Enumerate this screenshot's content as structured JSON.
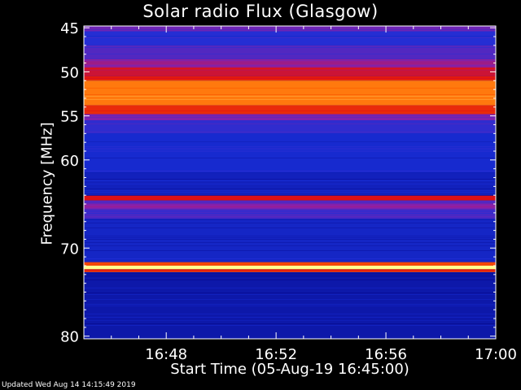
{
  "chart_data": {
    "type": "heatmap",
    "title": "Solar radio Flux (Glasgow)",
    "xlabel": "Start Time (05-Aug-19 16:45:00)",
    "ylabel": "Frequency [MHz]",
    "x_ticks": [
      "16:48",
      "16:52",
      "16:56",
      "17:00"
    ],
    "x_tick_minutes": [
      48,
      52,
      56,
      60
    ],
    "xlim_minutes": [
      45,
      60
    ],
    "y_ticks": [
      45,
      50,
      55,
      60,
      70,
      80
    ],
    "ylim_mhz": [
      44.8,
      80.3
    ],
    "colormap": [
      "#00007a",
      "#1a2fd8",
      "#8a20a8",
      "#e01010",
      "#ff6a00",
      "#ffff90"
    ],
    "bands": [
      {
        "from": 44.8,
        "to": 45.4,
        "level": 0.35
      },
      {
        "from": 45.4,
        "to": 47.0,
        "level": 0.22
      },
      {
        "from": 47.0,
        "to": 48.5,
        "level": 0.3
      },
      {
        "from": 48.5,
        "to": 49.5,
        "level": 0.42
      },
      {
        "from": 49.5,
        "to": 50.5,
        "level": 0.55
      },
      {
        "from": 50.5,
        "to": 51.0,
        "level": 0.62
      },
      {
        "from": 51.0,
        "to": 53.8,
        "level": 0.82
      },
      {
        "from": 53.8,
        "to": 54.8,
        "level": 0.66
      },
      {
        "from": 54.8,
        "to": 55.5,
        "level": 0.38
      },
      {
        "from": 55.5,
        "to": 57.0,
        "level": 0.24
      },
      {
        "from": 57.0,
        "to": 61.5,
        "level": 0.18
      },
      {
        "from": 61.5,
        "to": 64.0,
        "level": 0.14
      },
      {
        "from": 64.0,
        "to": 64.6,
        "level": 0.6
      },
      {
        "from": 64.6,
        "to": 65.0,
        "level": 0.3
      },
      {
        "from": 65.0,
        "to": 65.6,
        "level": 0.4
      },
      {
        "from": 65.6,
        "to": 66.6,
        "level": 0.28
      },
      {
        "from": 66.6,
        "to": 71.6,
        "level": 0.16
      },
      {
        "from": 71.6,
        "to": 72.0,
        "level": 0.72
      },
      {
        "from": 72.0,
        "to": 72.4,
        "level": 1.0
      },
      {
        "from": 72.4,
        "to": 72.7,
        "level": 0.66
      },
      {
        "from": 72.7,
        "to": 80.3,
        "level": 0.1
      }
    ],
    "grid": false
  },
  "footer": {
    "updated": "Updated Wed Aug 14 14:15:49 2019"
  }
}
